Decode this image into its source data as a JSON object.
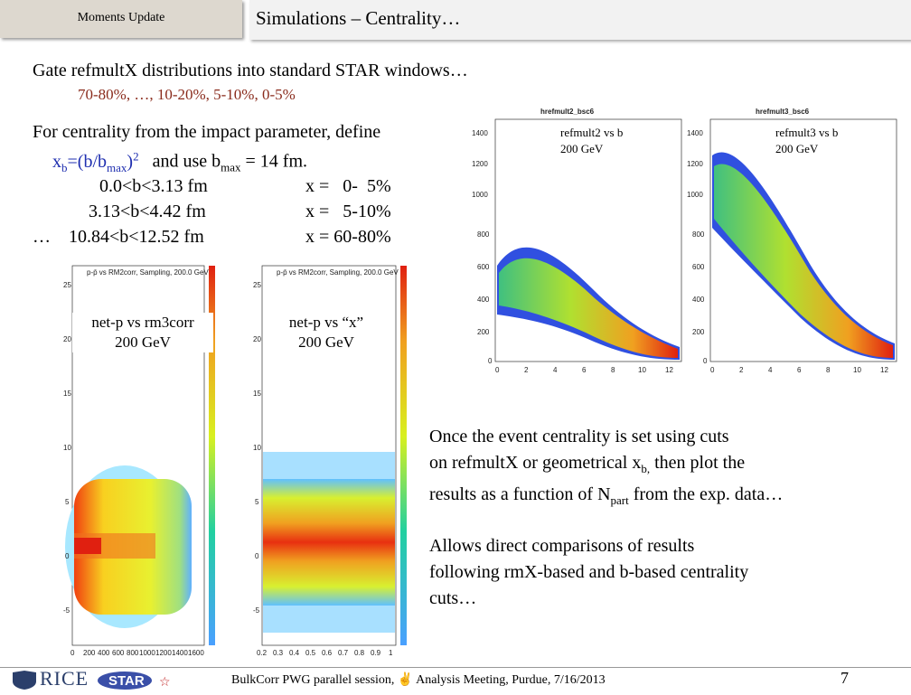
{
  "header": {
    "section_tab": "Moments Update",
    "title": "Simulations – Centrality…"
  },
  "body": {
    "line1": "Gate refmultX distributions into standard STAR windows…",
    "line1_windows": "70-80%, …, 10-20%, 5-10%, 0-5%",
    "line2": "For centrality from the impact parameter,  define",
    "line3_x": "x",
    "line3_xsub": "b",
    "line3_eq": "=(b/b",
    "line3_maxsub": "max",
    "line3_close": ")",
    "line3_sup": "2",
    "line3_rest": "and use b",
    "line3_rest_sub": "max",
    "line3_rest_val": " = 14 fm.",
    "rows": [
      {
        "range": "0.0<b<3.13 fm",
        "x": "x =   0-  5%"
      },
      {
        "range": "3.13<b<4.42 fm",
        "x": "x =   5-10%"
      },
      {
        "range": "…    10.84<b<12.52 fm",
        "x": "x = 60-80%"
      }
    ],
    "para1_a": "Once the event centrality is set using cuts",
    "para1_b": "on refmultX or geometrical  x",
    "para1_b_sub": "b,",
    "para1_b_rest": " then plot the",
    "para1_c": "results as a function of N",
    "para1_c_sub": "part",
    "para1_c_rest": " from the exp. data…",
    "para2_a": "Allows direct comparisons of results",
    "para2_b": "following rmX-based and b-based centrality",
    "para2_c": "cuts…"
  },
  "plots": {
    "p1": {
      "title": "p-p̄ vs RM2corr, Sampling, 200.0 GeV",
      "ann1": "net-p vs rm3corr",
      "ann2": "200 GeV",
      "yticks": [
        "25",
        "20",
        "15",
        "10",
        "5",
        "0",
        "-5"
      ],
      "xticks": [
        "0",
        "200",
        "400",
        "600",
        "800",
        "1000",
        "1200",
        "1400",
        "1600"
      ]
    },
    "p2": {
      "title": "p-p̄ vs RM2corr, Sampling, 200.0 GeV",
      "ann1": "net-p vs “x”",
      "ann2": "200 GeV",
      "yticks": [
        "25",
        "20",
        "15",
        "10",
        "5",
        "0",
        "-5"
      ],
      "xticks": [
        "0.2",
        "0.3",
        "0.4",
        "0.5",
        "0.6",
        "0.7",
        "0.8",
        "0.9",
        "1"
      ]
    },
    "p3": {
      "title": "hrefmult2_bsc6",
      "ann1": "refmult2 vs b",
      "ann2": "200 GeV",
      "yticks": [
        "1400",
        "1200",
        "1000",
        "800",
        "600",
        "400",
        "200",
        "0"
      ],
      "xticks": [
        "0",
        "2",
        "4",
        "6",
        "8",
        "10",
        "12"
      ]
    },
    "p4": {
      "title": "hrefmult3_bsc6",
      "ann1": "refmult3 vs b",
      "ann2": "200 GeV",
      "yticks": [
        "1400",
        "1200",
        "1000",
        "800",
        "600",
        "400",
        "200",
        "0"
      ],
      "xticks": [
        "0",
        "2",
        "4",
        "6",
        "8",
        "10",
        "12"
      ]
    }
  },
  "footer": {
    "rice": "RICE",
    "star": "STAR",
    "session": "BulkCorr PWG parallel session,  ✌  Analysis Meeting,  Purdue,  7/16/2013",
    "page": "7"
  }
}
